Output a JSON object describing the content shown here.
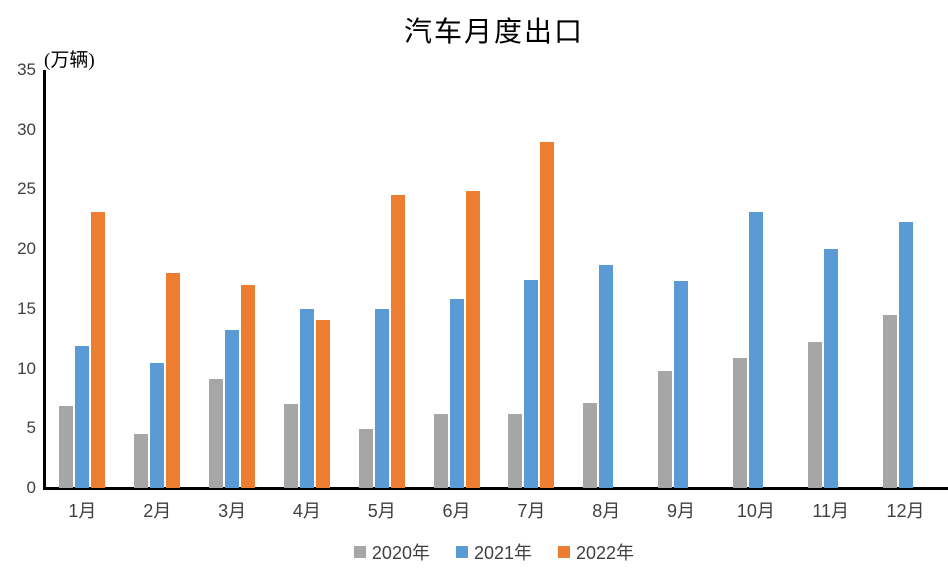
{
  "chart_data": {
    "type": "bar",
    "title": "汽车月度出口",
    "unit_label": "(万辆)",
    "categories": [
      "1月",
      "2月",
      "3月",
      "4月",
      "5月",
      "6月",
      "7月",
      "8月",
      "9月",
      "10月",
      "11月",
      "12月"
    ],
    "series": [
      {
        "name": "2020年",
        "color": "#A6A6A6",
        "values": [
          6.9,
          4.5,
          9.1,
          7.0,
          4.9,
          6.2,
          6.2,
          7.1,
          9.8,
          10.9,
          12.2,
          14.5
        ]
      },
      {
        "name": "2021年",
        "color": "#5B9BD5",
        "values": [
          11.9,
          10.5,
          13.2,
          15.0,
          15.0,
          15.8,
          17.4,
          18.7,
          17.3,
          23.1,
          20.0,
          22.3
        ]
      },
      {
        "name": "2022年",
        "color": "#ED7D31",
        "values": [
          23.1,
          18.0,
          17.0,
          14.1,
          24.5,
          24.9,
          29.0,
          null,
          null,
          null,
          null,
          null
        ]
      }
    ],
    "y_axis": {
      "min": 0,
      "max": 35,
      "ticks": [
        35,
        30,
        25,
        20,
        15,
        10,
        5,
        0
      ]
    },
    "grid": false,
    "legend_position": "bottom"
  }
}
